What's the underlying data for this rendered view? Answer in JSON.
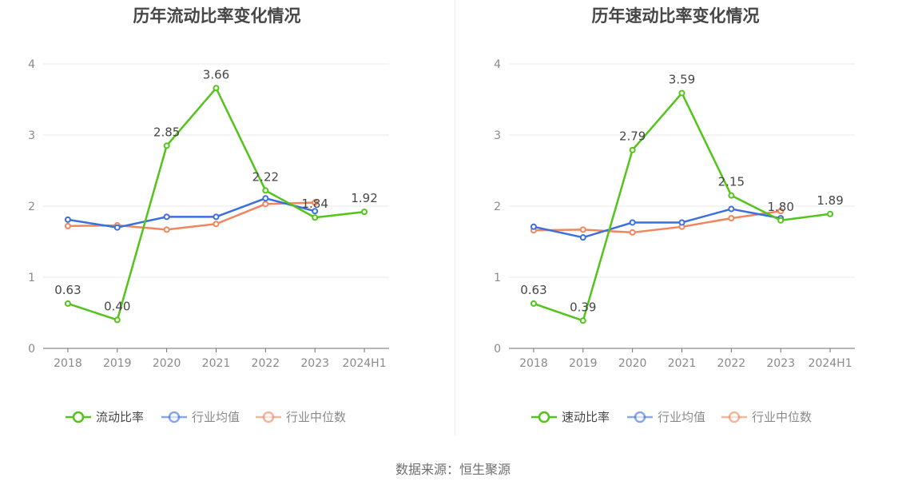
{
  "charts": [
    {
      "title": "历年流动比率变化情况",
      "chart_data": {
        "type": "line",
        "categories": [
          "2018",
          "2019",
          "2020",
          "2021",
          "2022",
          "2023",
          "2024H1"
        ],
        "ylim": [
          0,
          4
        ],
        "yticks": [
          "0",
          "1",
          "2",
          "3",
          "4"
        ],
        "grid": true,
        "legend_position": "bottom",
        "series": [
          {
            "name": "流动比率",
            "color": "#52c41a",
            "values": [
              0.63,
              0.4,
              2.85,
              3.66,
              2.22,
              1.84,
              1.92
            ],
            "labels": [
              "0.63",
              "0.40",
              "2.85",
              "3.66",
              "2.22",
              "1.84",
              "1.92"
            ]
          },
          {
            "name": "行业均值",
            "color": "#3a6fdc",
            "values": [
              1.81,
              1.7,
              1.85,
              1.85,
              2.11,
              1.93,
              null
            ]
          },
          {
            "name": "行业中位数",
            "color": "#f0855e",
            "values": [
              1.72,
              1.73,
              1.67,
              1.75,
              2.03,
              2.05,
              null
            ]
          }
        ]
      }
    },
    {
      "title": "历年速动比率变化情况",
      "chart_data": {
        "type": "line",
        "categories": [
          "2018",
          "2019",
          "2020",
          "2021",
          "2022",
          "2023",
          "2024H1"
        ],
        "ylim": [
          0,
          4
        ],
        "yticks": [
          "0",
          "1",
          "2",
          "3",
          "4"
        ],
        "grid": true,
        "legend_position": "bottom",
        "series": [
          {
            "name": "速动比率",
            "color": "#52c41a",
            "values": [
              0.63,
              0.39,
              2.79,
              3.59,
              2.15,
              1.8,
              1.89
            ],
            "labels": [
              "0.63",
              "0.39",
              "2.79",
              "3.59",
              "2.15",
              "1.80",
              "1.89"
            ]
          },
          {
            "name": "行业均值",
            "color": "#3a6fdc",
            "values": [
              1.71,
              1.56,
              1.77,
              1.77,
              1.96,
              1.83,
              null
            ]
          },
          {
            "name": "行业中位数",
            "color": "#f0855e",
            "values": [
              1.66,
              1.67,
              1.63,
              1.71,
              1.83,
              1.93,
              null
            ]
          }
        ]
      }
    }
  ],
  "footer": {
    "source": "数据来源：恒生聚源"
  }
}
